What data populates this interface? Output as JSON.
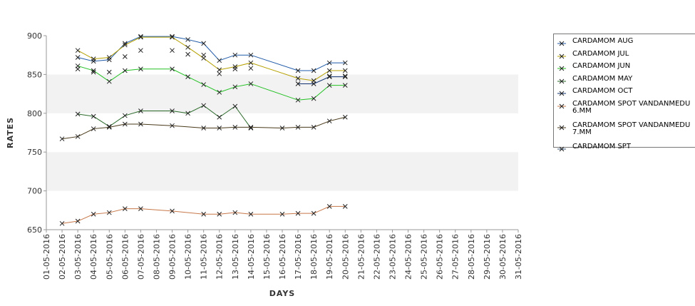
{
  "chart_data": {
    "type": "line",
    "xlabel": "DAYS",
    "ylabel": "RATES",
    "ylim": [
      650,
      900
    ],
    "yticks": [
      650,
      700,
      750,
      800,
      850,
      900
    ],
    "x_ticks": [
      "01-05-2016",
      "02-05-2016",
      "03-05-2016",
      "04-05-2016",
      "05-05-2016",
      "06-05-2016",
      "07-05-2016",
      "08-05-2016",
      "09-05-2016",
      "10-05-2016",
      "11-05-2016",
      "12-05-2016",
      "13-05-2016",
      "14-05-2016",
      "15-05-2016",
      "16-05-2016",
      "17-05-2016",
      "18-05-2016",
      "19-05-2016",
      "20-05-2016",
      "21-05-2016",
      "22-05-2016",
      "23-05-2016",
      "24-05-2016",
      "25-05-2016",
      "26-05-2016",
      "27-05-2016",
      "28-05-2016",
      "29-05-2016",
      "30-05-2016",
      "31-05-2016"
    ],
    "bands": "alternating grey horizontal bands",
    "legend_position": "right",
    "series": [
      {
        "name": "CARDAMOM AUG",
        "color": "#1f5aa8",
        "x": [
          "03-05-2016",
          "04-05-2016",
          "05-05-2016",
          "06-05-2016",
          "07-05-2016",
          "09-05-2016",
          "10-05-2016",
          "11-05-2016",
          "12-05-2016",
          "13-05-2016",
          "14-05-2016",
          "17-05-2016",
          "18-05-2016",
          "19-05-2016",
          "20-05-2016"
        ],
        "y": [
          872,
          867,
          869,
          890,
          899,
          899,
          895,
          890,
          868,
          875,
          875,
          855,
          855,
          865,
          865
        ]
      },
      {
        "name": "CARDAMOM JUL",
        "color": "#b5a000",
        "x": [
          "03-05-2016",
          "04-05-2016",
          "05-05-2016",
          "06-05-2016",
          "07-05-2016",
          "09-05-2016",
          "10-05-2016",
          "11-05-2016",
          "12-05-2016",
          "13-05-2016",
          "14-05-2016",
          "17-05-2016",
          "18-05-2016",
          "19-05-2016",
          "20-05-2016"
        ],
        "y": [
          881,
          870,
          872,
          888,
          898,
          898,
          885,
          871,
          856,
          860,
          865,
          845,
          842,
          855,
          855
        ]
      },
      {
        "name": "CARDAMOM JUN",
        "color": "#22c022",
        "x": [
          "03-05-2016",
          "04-05-2016",
          "05-05-2016",
          "06-05-2016",
          "07-05-2016",
          "09-05-2016",
          "10-05-2016",
          "11-05-2016",
          "12-05-2016",
          "13-05-2016",
          "14-05-2016",
          "17-05-2016",
          "18-05-2016",
          "19-05-2016",
          "20-05-2016"
        ],
        "y": [
          861,
          855,
          841,
          855,
          857,
          857,
          847,
          837,
          827,
          834,
          838,
          817,
          819,
          836,
          836
        ]
      },
      {
        "name": "CARDAMOM MAY",
        "color": "#2a6a2a",
        "x": [
          "03-05-2016",
          "04-05-2016",
          "05-05-2016",
          "06-05-2016",
          "07-05-2016",
          "09-05-2016",
          "10-05-2016",
          "11-05-2016",
          "12-05-2016",
          "13-05-2016",
          "14-05-2016"
        ],
        "y": [
          799,
          796,
          783,
          797,
          803,
          803,
          800,
          810,
          795,
          809,
          781
        ]
      },
      {
        "name": "CARDAMOM OCT",
        "color": "#103070",
        "x": [
          "17-05-2016",
          "18-05-2016",
          "19-05-2016",
          "20-05-2016"
        ],
        "y": [
          838,
          838,
          847,
          847
        ]
      },
      {
        "name": "CARDAMOM SPOT VANDANMEDU\n6.MM",
        "color": "#c8784a",
        "x": [
          "02-05-2016",
          "03-05-2016",
          "04-05-2016",
          "05-05-2016",
          "06-05-2016",
          "07-05-2016",
          "09-05-2016",
          "11-05-2016",
          "12-05-2016",
          "13-05-2016",
          "14-05-2016",
          "16-05-2016",
          "17-05-2016",
          "18-05-2016",
          "19-05-2016",
          "20-05-2016"
        ],
        "y": [
          658,
          661,
          670,
          672,
          677,
          677,
          674,
          670,
          670,
          672,
          670,
          670,
          671,
          671,
          680,
          680
        ]
      },
      {
        "name": "CARDAMOM SPOT VANDANMEDU\n7.MM",
        "color": "#4a3a1a",
        "x": [
          "02-05-2016",
          "03-05-2016",
          "04-05-2016",
          "05-05-2016",
          "06-05-2016",
          "07-05-2016",
          "09-05-2016",
          "11-05-2016",
          "12-05-2016",
          "13-05-2016",
          "14-05-2016",
          "16-05-2016",
          "17-05-2016",
          "18-05-2016",
          "19-05-2016",
          "20-05-2016"
        ],
        "y": [
          767,
          770,
          780,
          782,
          786,
          786,
          784,
          781,
          781,
          782,
          782,
          781,
          782,
          782,
          790,
          795
        ]
      },
      {
        "name": "CARDAMOM SPT",
        "color": "#3a5a7a",
        "line": false,
        "x": [
          "03-05-2016",
          "04-05-2016",
          "05-05-2016",
          "06-05-2016",
          "07-05-2016",
          "09-05-2016",
          "10-05-2016",
          "11-05-2016",
          "12-05-2016",
          "13-05-2016",
          "14-05-2016",
          "17-05-2016",
          "18-05-2016",
          "19-05-2016",
          "20-05-2016"
        ],
        "y": [
          857,
          853,
          853,
          873,
          881,
          881,
          876,
          875,
          851,
          857,
          858,
          838,
          838,
          848,
          848
        ]
      }
    ]
  }
}
